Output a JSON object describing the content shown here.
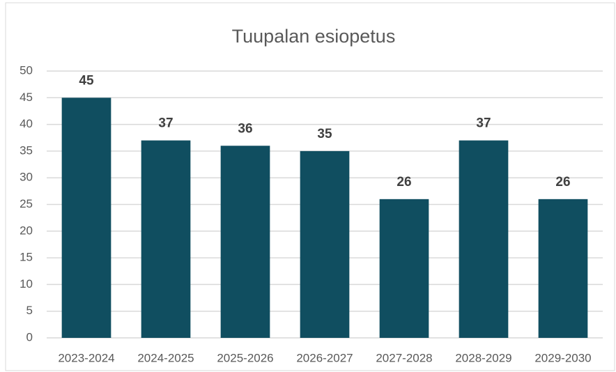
{
  "chart_data": {
    "type": "bar",
    "title": "Tuupalan esiopetus",
    "categories": [
      "2023-2024",
      "2024-2025",
      "2025-2026",
      "2026-2027",
      "2027-2028",
      "2028-2029",
      "2029-2030"
    ],
    "values": [
      45,
      37,
      36,
      35,
      26,
      37,
      26
    ],
    "color": "#104e60",
    "ylim": [
      0,
      50
    ],
    "yticks": [
      0,
      5,
      10,
      15,
      20,
      25,
      30,
      35,
      40,
      45,
      50
    ],
    "grid": true
  }
}
